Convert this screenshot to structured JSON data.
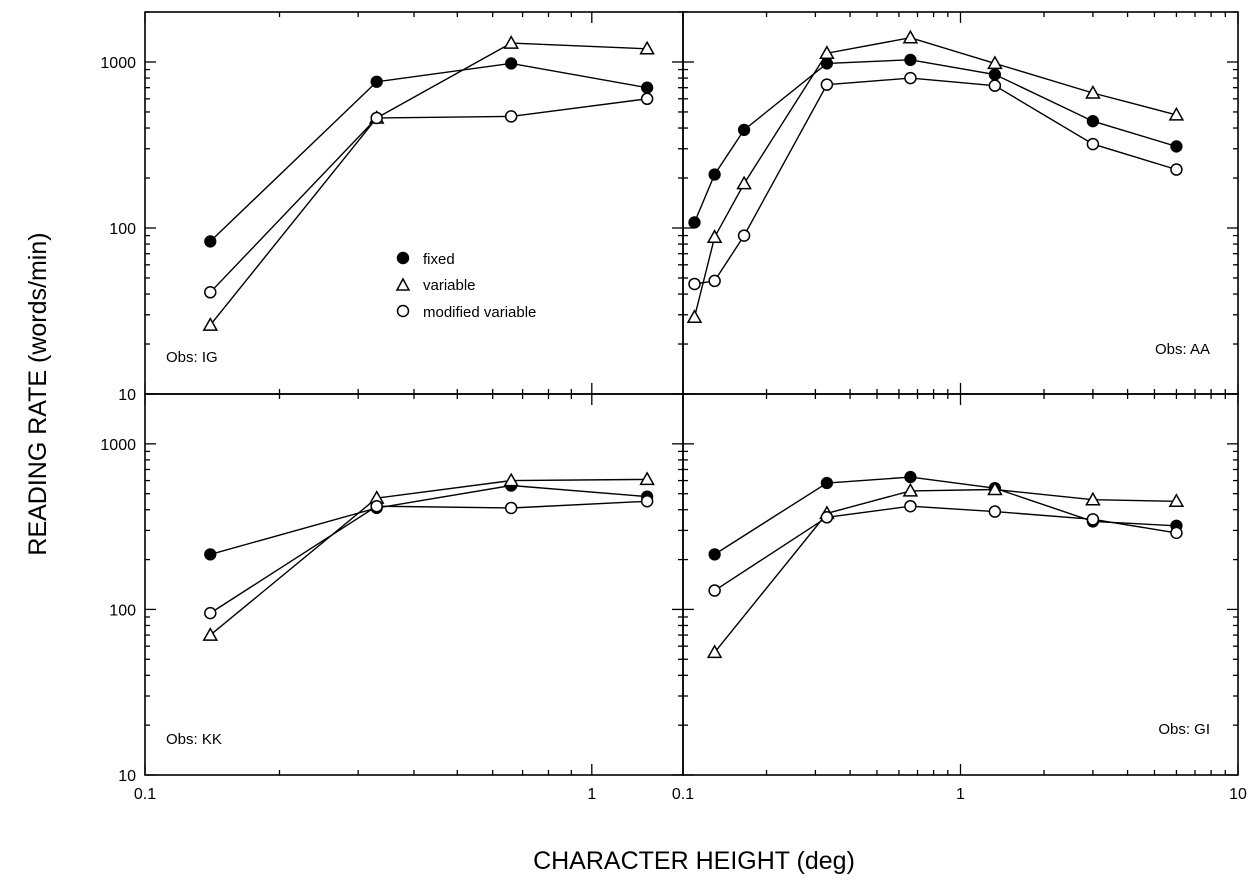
{
  "figure": {
    "xlabel": "CHARACTER HEIGHT (deg)",
    "ylabel": "READING RATE (words/min)"
  },
  "legend": {
    "placement": "top-left panel, center",
    "entries": [
      {
        "label": "fixed",
        "marker": "filled-circle"
      },
      {
        "label": "variable",
        "marker": "open-triangle"
      },
      {
        "label": "modified variable",
        "marker": "open-circle"
      }
    ]
  },
  "colors": {
    "ink": "#000000",
    "background": "#ffffff"
  },
  "chart_data": [
    {
      "type": "line",
      "panel": "top-left",
      "label": "Obs: IG",
      "xscale": "log",
      "yscale": "log",
      "xlim": [
        0.1,
        1.6
      ],
      "ylim": [
        10,
        2000
      ],
      "grid": false,
      "y_ticks": [
        "10",
        "100",
        "1000"
      ],
      "x_ticks": [],
      "series": [
        {
          "name": "fixed",
          "marker": "filled-circle",
          "x": [
            0.14,
            0.33,
            0.66,
            1.33
          ],
          "y": [
            83,
            760,
            980,
            700
          ]
        },
        {
          "name": "variable",
          "marker": "open-triangle",
          "x": [
            0.14,
            0.33,
            0.66,
            1.33
          ],
          "y": [
            26,
            460,
            1300,
            1200
          ]
        },
        {
          "name": "modified variable",
          "marker": "open-circle",
          "x": [
            0.14,
            0.33,
            0.66,
            1.33
          ],
          "y": [
            41,
            460,
            470,
            600
          ]
        }
      ]
    },
    {
      "type": "line",
      "panel": "top-right",
      "label": "Obs: AA",
      "xscale": "log",
      "yscale": "log",
      "xlim": [
        0.1,
        10
      ],
      "ylim": [
        10,
        2000
      ],
      "grid": false,
      "y_ticks": [],
      "x_ticks": [],
      "series": [
        {
          "name": "fixed",
          "marker": "filled-circle",
          "x": [
            0.11,
            0.13,
            0.166,
            0.33,
            0.66,
            1.33,
            3.0,
            6.0
          ],
          "y": [
            108,
            210,
            390,
            980,
            1030,
            840,
            440,
            310
          ]
        },
        {
          "name": "variable",
          "marker": "open-triangle",
          "x": [
            0.11,
            0.13,
            0.166,
            0.33,
            0.66,
            1.33,
            3.0,
            6.0
          ],
          "y": [
            29,
            88,
            185,
            1130,
            1400,
            980,
            650,
            480
          ]
        },
        {
          "name": "modified variable",
          "marker": "open-circle",
          "x": [
            0.11,
            0.13,
            0.166,
            0.33,
            0.66,
            1.33,
            3.0,
            6.0
          ],
          "y": [
            46,
            48,
            90,
            730,
            800,
            720,
            320,
            225
          ]
        }
      ]
    },
    {
      "type": "line",
      "panel": "bottom-left",
      "label": "Obs: KK",
      "xscale": "log",
      "yscale": "log",
      "xlim": [
        0.1,
        1.6
      ],
      "ylim": [
        10,
        2000
      ],
      "grid": false,
      "y_ticks": [
        "10",
        "100",
        "1000"
      ],
      "x_ticks": [
        "0.1",
        "1"
      ],
      "series": [
        {
          "name": "fixed",
          "marker": "filled-circle",
          "x": [
            0.14,
            0.33,
            0.66,
            1.33
          ],
          "y": [
            215,
            410,
            560,
            480
          ]
        },
        {
          "name": "variable",
          "marker": "open-triangle",
          "x": [
            0.14,
            0.33,
            0.66,
            1.33
          ],
          "y": [
            70,
            470,
            600,
            610
          ]
        },
        {
          "name": "modified variable",
          "marker": "open-circle",
          "x": [
            0.14,
            0.33,
            0.66,
            1.33
          ],
          "y": [
            95,
            420,
            410,
            450
          ]
        }
      ]
    },
    {
      "type": "line",
      "panel": "bottom-right",
      "label": "Obs: GI",
      "xscale": "log",
      "yscale": "log",
      "xlim": [
        0.1,
        10
      ],
      "ylim": [
        10,
        2000
      ],
      "grid": false,
      "y_ticks": [],
      "x_ticks": [
        "0.1",
        "1",
        "10"
      ],
      "series": [
        {
          "name": "fixed",
          "marker": "filled-circle",
          "x": [
            0.13,
            0.33,
            0.66,
            1.33,
            3.0,
            6.0
          ],
          "y": [
            215,
            580,
            630,
            540,
            340,
            320
          ]
        },
        {
          "name": "variable",
          "marker": "open-triangle",
          "x": [
            0.13,
            0.33,
            0.66,
            1.33,
            3.0,
            6.0
          ],
          "y": [
            55,
            380,
            520,
            530,
            460,
            450
          ]
        },
        {
          "name": "modified variable",
          "marker": "open-circle",
          "x": [
            0.13,
            0.33,
            0.66,
            1.33,
            3.0,
            6.0
          ],
          "y": [
            130,
            360,
            420,
            390,
            350,
            290
          ]
        }
      ]
    }
  ]
}
